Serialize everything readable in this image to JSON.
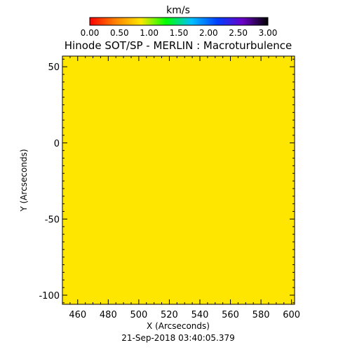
{
  "chart_data": {
    "type": "heatmap",
    "title": "Hinode SOT/SP - MERLIN : Macroturbulence",
    "xlabel": "X (Arcseconds)",
    "ylabel": "Y (Arcseconds)",
    "footer": "21-Sep-2018 03:40:05.379",
    "xlim": [
      450,
      602
    ],
    "ylim": [
      -106,
      57
    ],
    "x_ticks": [
      460,
      480,
      500,
      520,
      540,
      560,
      580,
      600
    ],
    "y_ticks": [
      50,
      0,
      -50,
      -100
    ],
    "grid": false,
    "fill_value": 1.22,
    "fill_color": "#ffe600",
    "colorbar": {
      "label": "km/s",
      "range": [
        0,
        3
      ],
      "ticks": [
        "0.00",
        "0.50",
        "1.00",
        "1.50",
        "2.00",
        "2.50",
        "3.00"
      ],
      "colors": [
        "#ff0000",
        "#ff8000",
        "#ffe600",
        "#00ff00",
        "#00c0ff",
        "#0040ff",
        "#6a00c8",
        "#000000"
      ],
      "position": "top"
    }
  }
}
